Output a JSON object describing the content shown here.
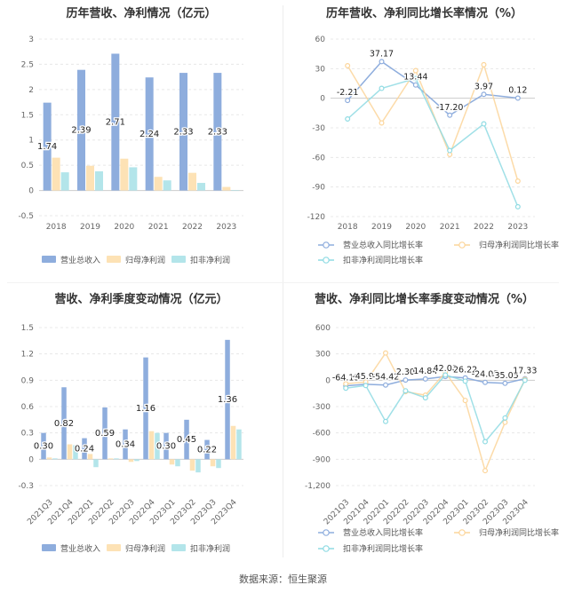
{
  "footer": "数据来源：恒生聚源",
  "colors": {
    "revenue": "#8eaddd",
    "net_profit": "#fde2b5",
    "deducted_profit": "#b3e5ea",
    "grid": "#e8e8e8",
    "axis_text": "#666666"
  },
  "chart_data": [
    {
      "id": "annual-revenue-profit",
      "type": "bar",
      "title": "历年营收、净利情况（亿元）",
      "categories": [
        "2018",
        "2019",
        "2020",
        "2021",
        "2022",
        "2023"
      ],
      "ylim": [
        -0.5,
        3
      ],
      "yticks": [
        -0.5,
        0,
        0.5,
        1,
        1.5,
        2,
        2.5,
        3
      ],
      "ytick_labels": [
        "-0.5",
        "0",
        "0.5",
        "1",
        "1.5",
        "2",
        "2.5",
        "3"
      ],
      "series": [
        {
          "name": "营业总收入",
          "values": [
            1.74,
            2.39,
            2.71,
            2.24,
            2.33,
            2.33
          ],
          "labels": [
            "1.74",
            "2.39",
            "2.71",
            "2.24",
            "2.33",
            "2.33"
          ]
        },
        {
          "name": "归母净利润",
          "values": [
            0.65,
            0.49,
            0.63,
            0.27,
            0.35,
            0.07
          ]
        },
        {
          "name": "扣非净利润",
          "values": [
            0.36,
            0.38,
            0.46,
            0.2,
            0.15,
            0.01
          ]
        }
      ]
    },
    {
      "id": "annual-growth",
      "type": "line",
      "title": "历年营收、净利同比增长率情况（%）",
      "categories": [
        "2018",
        "2019",
        "2020",
        "2021",
        "2022",
        "2023"
      ],
      "ylim": [
        -120,
        60
      ],
      "yticks": [
        -120,
        -90,
        -60,
        -30,
        0,
        30,
        60
      ],
      "ytick_labels": [
        "-120",
        "-90",
        "-60",
        "-30",
        "0",
        "30",
        "60"
      ],
      "series": [
        {
          "name": "营业总收入同比增长率",
          "values": [
            -2.21,
            37.17,
            13.44,
            -17.2,
            3.97,
            0.12
          ],
          "labels": [
            "-2.21",
            "37.17",
            "13.44",
            "-17.20",
            "3.97",
            "0.12"
          ]
        },
        {
          "name": "归母净利润同比增长率",
          "values": [
            33,
            -25,
            28,
            -57,
            34,
            -84
          ]
        },
        {
          "name": "扣非净利润同比增长率",
          "values": [
            -21,
            10,
            20,
            -53,
            -26,
            -110
          ]
        }
      ]
    },
    {
      "id": "quarterly-revenue-profit",
      "type": "bar",
      "title": "营收、净利季度变动情况（亿元）",
      "categories": [
        "2021Q3",
        "2021Q4",
        "2022Q1",
        "2022Q2",
        "2022Q3",
        "2022Q4",
        "2023Q1",
        "2023Q2",
        "2023Q3",
        "2023Q4"
      ],
      "ylim": [
        -0.3,
        1.5
      ],
      "yticks": [
        -0.3,
        0,
        0.3,
        0.6,
        0.9,
        1.2,
        1.5
      ],
      "ytick_labels": [
        "-0.3",
        "0",
        "0.3",
        "0.6",
        "0.9",
        "1.2",
        "1.5"
      ],
      "series": [
        {
          "name": "营业总收入",
          "values": [
            0.3,
            0.82,
            0.24,
            0.59,
            0.34,
            1.16,
            0.3,
            0.45,
            0.22,
            1.36
          ],
          "labels": [
            "0.30",
            "0.82",
            "0.24",
            "0.59",
            "0.34",
            "1.16",
            "0.30",
            "0.45",
            "0.22",
            "1.36"
          ]
        },
        {
          "name": "归母净利润",
          "values": [
            0.02,
            0.17,
            0.06,
            0.01,
            -0.03,
            0.32,
            -0.06,
            -0.13,
            -0.08,
            0.38
          ]
        },
        {
          "name": "扣非净利润",
          "values": [
            0.01,
            0.16,
            -0.09,
            0.01,
            -0.02,
            0.3,
            -0.08,
            -0.15,
            -0.1,
            0.34
          ]
        }
      ]
    },
    {
      "id": "quarterly-growth",
      "type": "line",
      "title": "营收、净利同比增长率季度变动情况（%）",
      "categories": [
        "2021Q3",
        "2021Q4",
        "2022Q1",
        "2022Q2",
        "2022Q3",
        "2022Q4",
        "2023Q1",
        "2023Q2",
        "2023Q3",
        "2023Q4"
      ],
      "ylim": [
        -1200,
        600
      ],
      "yticks": [
        -1200,
        -900,
        -600,
        -300,
        0,
        300,
        600
      ],
      "ytick_labels": [
        "-1,200",
        "-900",
        "-600",
        "-300",
        "0",
        "300",
        "600"
      ],
      "series": [
        {
          "name": "营业总收入同比增长率",
          "values": [
            -64.13,
            -45.98,
            -54.42,
            2.3,
            14.84,
            42.08,
            26.22,
            -24.05,
            -35.05,
            17.33
          ],
          "labels": [
            "-64.13",
            "-45.98",
            "-54.42",
            "2.30",
            "14.84",
            "42.08",
            "26.22",
            "-24.05",
            "-35.05",
            "17.33"
          ]
        },
        {
          "name": "归母净利润同比增长率",
          "values": [
            -40,
            -20,
            310,
            -130,
            -170,
            90,
            -230,
            -1030,
            -480,
            10
          ]
        },
        {
          "name": "扣非净利润同比增长率",
          "values": [
            -90,
            -60,
            -470,
            -120,
            -200,
            60,
            -10,
            -700,
            -430,
            0
          ]
        }
      ]
    }
  ]
}
